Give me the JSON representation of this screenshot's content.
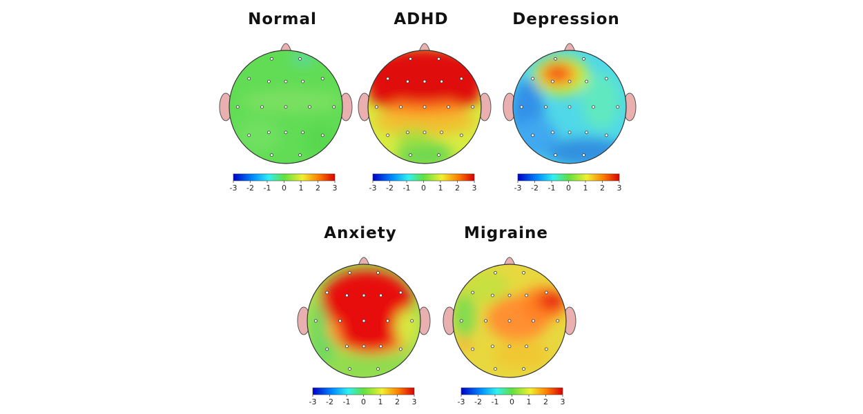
{
  "panels": [
    {
      "title": "Normal",
      "scale_ticks": [
        -3,
        -2,
        -1,
        0,
        1,
        2,
        3
      ]
    },
    {
      "title": "ADHD",
      "scale_ticks": [
        -3,
        -2,
        -1,
        0,
        1,
        2,
        3
      ]
    },
    {
      "title": "Depression",
      "scale_ticks": [
        -3,
        -2,
        -1,
        0,
        1,
        2,
        3
      ]
    },
    {
      "title": "Anxiety",
      "scale_ticks": [
        -3,
        -2,
        -1,
        0,
        1,
        2,
        3
      ]
    },
    {
      "title": "Migraine",
      "scale_ticks": [
        -3,
        -2,
        -1,
        0,
        1,
        2,
        3
      ]
    }
  ]
}
